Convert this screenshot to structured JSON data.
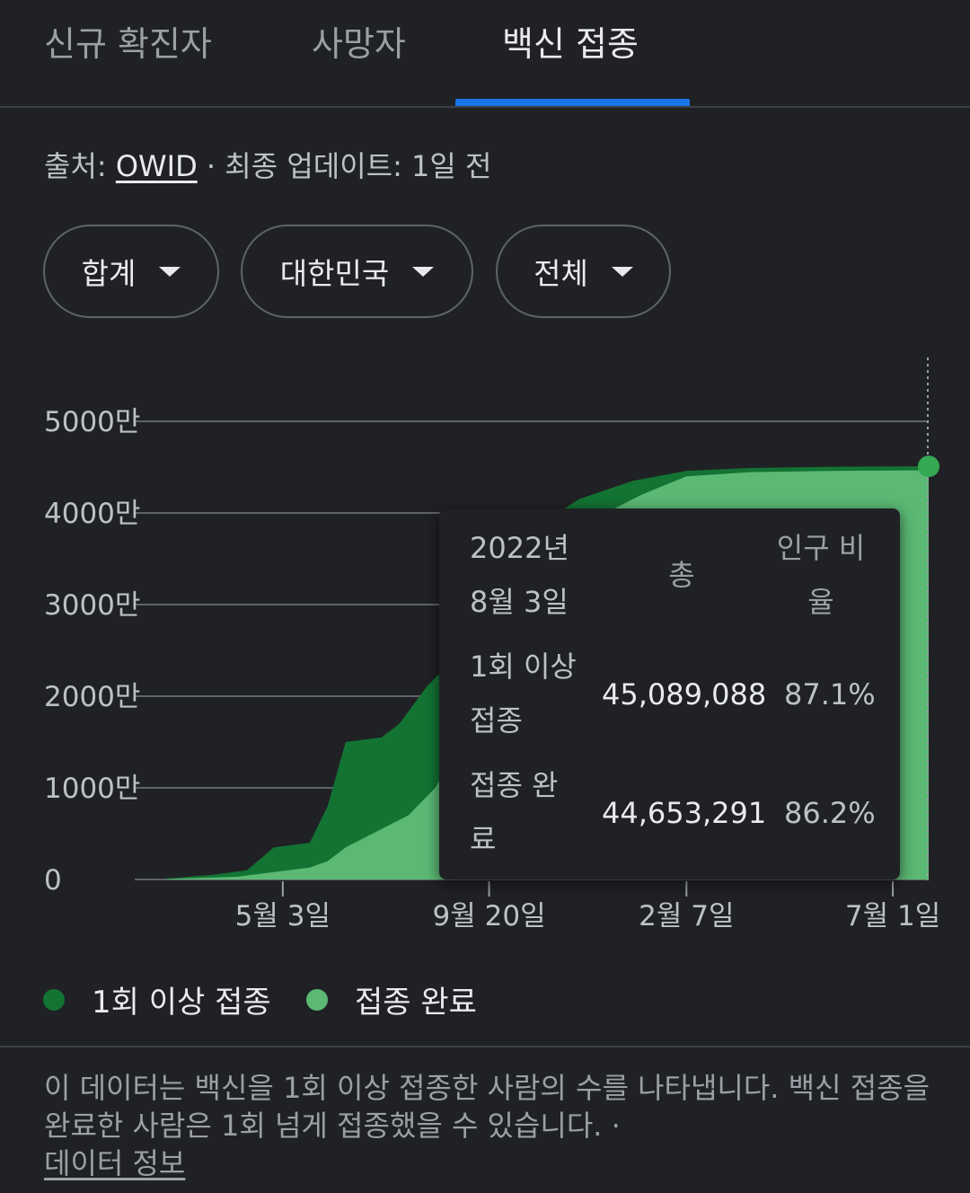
{
  "tabs": [
    {
      "label": "신규 확진자"
    },
    {
      "label": "사망자"
    },
    {
      "label": "백신 접종"
    }
  ],
  "source": {
    "prefix": "출처: ",
    "link": "OWID",
    "suffix": " · 최종 업데이트: 1일 전"
  },
  "filters": [
    {
      "label": "합계"
    },
    {
      "label": "대한민국"
    },
    {
      "label": "전체"
    }
  ],
  "chart_data": {
    "type": "area",
    "y_ticks": [
      "0",
      "1000만",
      "2000만",
      "3000만",
      "4000만",
      "5000만"
    ],
    "ylim": [
      0,
      50000000
    ],
    "x_ticks": [
      "5월 3일",
      "9월 20일",
      "2월 7일",
      "7월 1일"
    ],
    "x_tick_values": [
      1.3,
      3.6,
      5.8,
      8.1
    ],
    "xlim": [
      0,
      8.5
    ],
    "series": [
      {
        "name": "1회 이상 접종",
        "color": "#137333",
        "points": [
          [
            0.0,
            100000
          ],
          [
            0.5,
            500000
          ],
          [
            0.9,
            1000000
          ],
          [
            1.2,
            3500000
          ],
          [
            1.6,
            4000000
          ],
          [
            1.8,
            8000000
          ],
          [
            2.0,
            15000000
          ],
          [
            2.4,
            15500000
          ],
          [
            2.6,
            17000000
          ],
          [
            2.9,
            21000000
          ],
          [
            3.2,
            24000000
          ],
          [
            3.4,
            30000000
          ],
          [
            3.7,
            36000000
          ],
          [
            4.2,
            39000000
          ],
          [
            4.6,
            41500000
          ],
          [
            5.2,
            43500000
          ],
          [
            5.8,
            44600000
          ],
          [
            6.5,
            44900000
          ],
          [
            7.5,
            45050000
          ],
          [
            8.5,
            45089088
          ]
        ]
      },
      {
        "name": "접종 완료",
        "color": "#5bb974",
        "points": [
          [
            0.0,
            50000
          ],
          [
            0.8,
            300000
          ],
          [
            1.2,
            800000
          ],
          [
            1.6,
            1300000
          ],
          [
            1.8,
            2000000
          ],
          [
            2.0,
            3500000
          ],
          [
            2.4,
            5500000
          ],
          [
            2.7,
            7000000
          ],
          [
            3.0,
            10000000
          ],
          [
            3.3,
            15000000
          ],
          [
            3.6,
            22000000
          ],
          [
            3.9,
            30000000
          ],
          [
            4.3,
            36000000
          ],
          [
            4.8,
            39500000
          ],
          [
            5.3,
            42000000
          ],
          [
            5.8,
            44000000
          ],
          [
            6.5,
            44450000
          ],
          [
            7.5,
            44600000
          ],
          [
            8.5,
            44653291
          ]
        ]
      }
    ]
  },
  "tooltip": {
    "date_line1": "2022년",
    "date_line2": "8월 3일",
    "col_total": "총",
    "col_ratio_line1": "인구 비",
    "col_ratio_line2": "율",
    "rows": [
      {
        "label_line1": "1회 이상",
        "label_line2": "접종",
        "total": "45,089,088",
        "ratio": "87.1%"
      },
      {
        "label_line1": "접종 완",
        "label_line2": "료",
        "total": "44,653,291",
        "ratio": "86.2%"
      }
    ]
  },
  "legend": [
    {
      "label": "1회 이상 접종",
      "color": "#137333"
    },
    {
      "label": "접종 완료",
      "color": "#5bb974"
    }
  ],
  "footnote": {
    "text": "이 데이터는 백신을 1회 이상 접종한 사람의 수를 나타냅니다. 백신 접종을 완료한 사람은 1회 넘게 접종했을 수 있습니다.  ·",
    "link": "데이터 정보"
  }
}
